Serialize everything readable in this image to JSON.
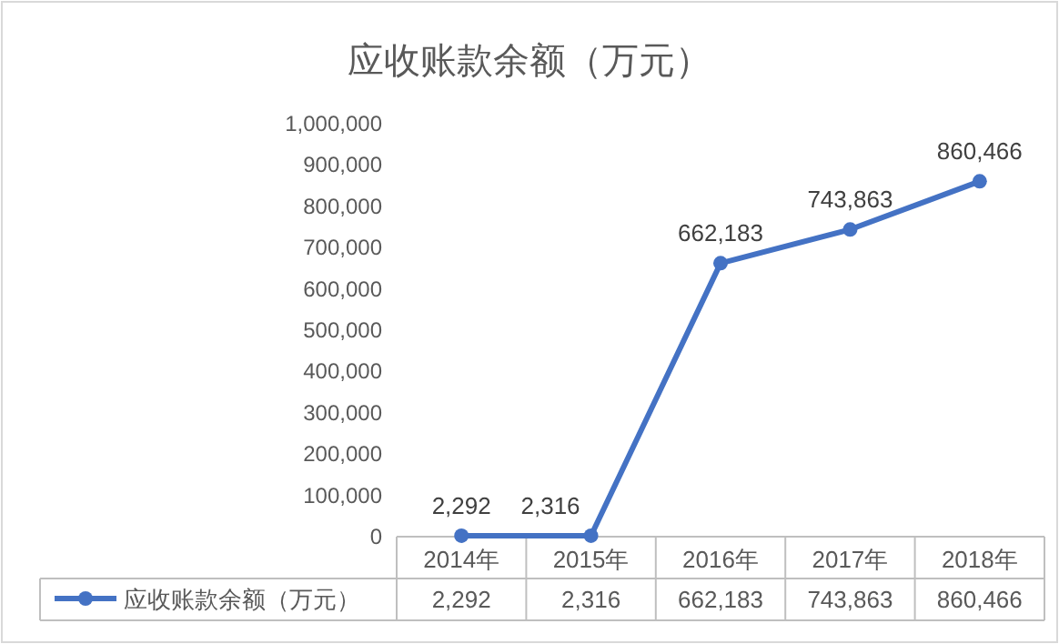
{
  "chart_data": {
    "type": "line",
    "title": "应收账款余额（万元）",
    "categories": [
      "2014年",
      "2015年",
      "2016年",
      "2017年",
      "2018年"
    ],
    "series": [
      {
        "name": "应收账款余额（万元）",
        "color": "#4472c4",
        "values": [
          2292,
          2316,
          662183,
          743863,
          860466
        ],
        "value_labels": [
          "2,292",
          "2,316",
          "662,183",
          "743,863",
          "860,466"
        ]
      }
    ],
    "ylim": [
      0,
      1000000
    ],
    "yticks": [
      {
        "value": 0,
        "label": "0"
      },
      {
        "value": 100000,
        "label": "100,000"
      },
      {
        "value": 200000,
        "label": "200,000"
      },
      {
        "value": 300000,
        "label": "300,000"
      },
      {
        "value": 400000,
        "label": "400,000"
      },
      {
        "value": 500000,
        "label": "500,000"
      },
      {
        "value": 600000,
        "label": "600,000"
      },
      {
        "value": 700000,
        "label": "700,000"
      },
      {
        "value": 800000,
        "label": "800,000"
      },
      {
        "value": 900000,
        "label": "900,000"
      },
      {
        "value": 1000000,
        "label": "1,000,000"
      }
    ],
    "marker": "circle",
    "line_style": "solid",
    "grid": false,
    "legend": "bottom"
  }
}
